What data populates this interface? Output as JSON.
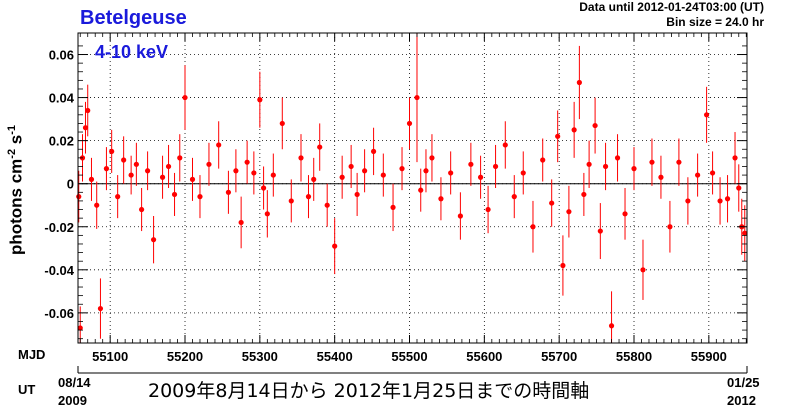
{
  "header": {
    "source_name": "Betelgeuse",
    "energy_band": "4-10 keV",
    "data_until": "Data until 2012-01-24T03:00 (UT)",
    "bin_size": "Bin size = 24.0 hr"
  },
  "axis_labels": {
    "mjd": "MJD",
    "ut": "UT",
    "start_date": "08/14",
    "start_year": "2009",
    "end_date": "01/25",
    "end_year": "2012"
  },
  "caption": "2009年8月14日から  2012年1月25日までの時間軸",
  "colors": {
    "data_points": "#ff0000",
    "title_text": "#1a1adb",
    "grid": "#000000"
  },
  "chart_data": {
    "type": "scatter",
    "title": "Betelgeuse",
    "subtitle": "4-10 keV",
    "xlabel": "MJD",
    "ylabel": "photons cm⁻² s⁻¹",
    "xlim": [
      55057,
      55951
    ],
    "ylim": [
      -0.074,
      0.07
    ],
    "xticks": [
      55100,
      55200,
      55300,
      55400,
      55500,
      55600,
      55700,
      55800,
      55900
    ],
    "yticks": [
      -0.06,
      -0.04,
      -0.02,
      0,
      0.02,
      0.04,
      0.06
    ],
    "ytick_labels": [
      "-0.06",
      "-0.04",
      "-0.02",
      "0",
      "0.02",
      "0.04",
      "0.06"
    ],
    "grid": true,
    "error_bars": true,
    "series": [
      {
        "color": "#ff0000",
        "x": [
          55058,
          55060,
          55063,
          55067,
          55070,
          55075,
          55082,
          55087,
          55095,
          55102,
          55110,
          55118,
          55128,
          55135,
          55142,
          55150,
          55158,
          55170,
          55178,
          55186,
          55193,
          55200,
          55210,
          55220,
          55232,
          55245,
          55258,
          55268,
          55275,
          55283,
          55292,
          55300,
          55305,
          55310,
          55318,
          55330,
          55342,
          55355,
          55365,
          55372,
          55380,
          55390,
          55400,
          55410,
          55422,
          55430,
          55440,
          55452,
          55465,
          55478,
          55490,
          55500,
          55510,
          55515,
          55522,
          55530,
          55542,
          55555,
          55568,
          55582,
          55595,
          55605,
          55615,
          55628,
          55640,
          55652,
          55665,
          55678,
          55690,
          55698,
          55705,
          55713,
          55720,
          55727,
          55733,
          55740,
          55748,
          55755,
          55762,
          55770,
          55778,
          55788,
          55800,
          55812,
          55824,
          55836,
          55848,
          55860,
          55872,
          55885,
          55897,
          55905,
          55915,
          55925,
          55935,
          55940,
          55944,
          55948
        ],
        "y": [
          -0.006,
          -0.067,
          0.012,
          0.026,
          0.034,
          0.002,
          -0.01,
          -0.058,
          0.007,
          0.015,
          -0.006,
          0.011,
          0.004,
          0.009,
          -0.012,
          0.006,
          -0.026,
          0.003,
          0.008,
          -0.005,
          0.012,
          0.04,
          0.002,
          -0.006,
          0.009,
          0.018,
          -0.004,
          0.006,
          -0.018,
          0.01,
          0.005,
          0.039,
          -0.002,
          -0.014,
          0.004,
          0.028,
          -0.008,
          0.012,
          -0.006,
          0.002,
          0.017,
          -0.01,
          -0.029,
          0.003,
          0.008,
          -0.005,
          0.006,
          0.015,
          0.004,
          -0.011,
          0.007,
          0.028,
          0.04,
          -0.003,
          0.006,
          0.012,
          -0.007,
          0.005,
          -0.015,
          0.009,
          0.003,
          -0.012,
          0.008,
          0.018,
          -0.006,
          0.005,
          -0.02,
          0.011,
          -0.009,
          0.022,
          -0.038,
          -0.013,
          0.025,
          0.047,
          -0.005,
          0.009,
          0.027,
          -0.022,
          0.008,
          -0.066,
          0.012,
          -0.014,
          0.007,
          -0.04,
          0.01,
          0.003,
          -0.02,
          0.01,
          -0.008,
          0.004,
          0.032,
          0.005,
          -0.008,
          -0.007,
          0.012,
          -0.002,
          -0.02,
          -0.023
        ],
        "yerr": [
          0.012,
          0.01,
          0.011,
          0.012,
          0.012,
          0.01,
          0.011,
          0.014,
          0.01,
          0.01,
          0.01,
          0.011,
          0.009,
          0.01,
          0.01,
          0.009,
          0.011,
          0.01,
          0.01,
          0.01,
          0.011,
          0.015,
          0.01,
          0.01,
          0.01,
          0.011,
          0.01,
          0.01,
          0.012,
          0.01,
          0.01,
          0.013,
          0.01,
          0.011,
          0.01,
          0.012,
          0.01,
          0.011,
          0.01,
          0.01,
          0.011,
          0.01,
          0.013,
          0.01,
          0.01,
          0.01,
          0.01,
          0.011,
          0.01,
          0.011,
          0.01,
          0.012,
          0.03,
          0.01,
          0.01,
          0.011,
          0.01,
          0.01,
          0.011,
          0.01,
          0.01,
          0.011,
          0.01,
          0.011,
          0.01,
          0.01,
          0.012,
          0.01,
          0.011,
          0.012,
          0.014,
          0.012,
          0.013,
          0.017,
          0.01,
          0.011,
          0.013,
          0.013,
          0.011,
          0.016,
          0.011,
          0.012,
          0.01,
          0.014,
          0.011,
          0.01,
          0.012,
          0.011,
          0.011,
          0.01,
          0.013,
          0.01,
          0.011,
          0.011,
          0.012,
          0.011,
          0.013,
          0.013
        ]
      }
    ]
  }
}
